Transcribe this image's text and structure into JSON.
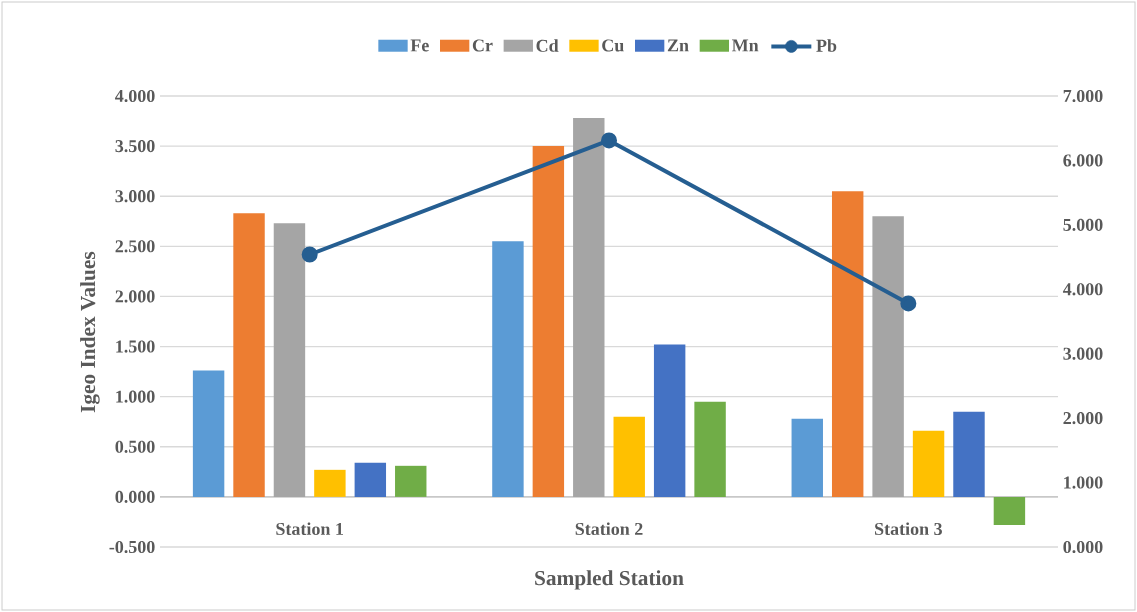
{
  "chart_data": {
    "type": "bar",
    "xlabel": "Sampled Station",
    "ylabel": "Igeo Index Values",
    "categories": [
      "Station 1",
      "Station 2",
      "Station 3"
    ],
    "series": [
      {
        "name": "Fe",
        "color": "#5b9bd5",
        "values": [
          1.26,
          2.55,
          0.78
        ]
      },
      {
        "name": "Cr",
        "color": "#ed7d31",
        "values": [
          2.83,
          3.5,
          3.05
        ]
      },
      {
        "name": "Cd",
        "color": "#a5a5a5",
        "values": [
          2.73,
          3.78,
          2.8
        ]
      },
      {
        "name": "Cu",
        "color": "#ffc000",
        "values": [
          0.27,
          0.8,
          0.66
        ]
      },
      {
        "name": "Zn",
        "color": "#4472c4",
        "values": [
          0.34,
          1.52,
          0.85
        ]
      },
      {
        "name": "Mn",
        "color": "#70ad47",
        "values": [
          0.31,
          0.95,
          -0.28
        ]
      },
      {
        "name": "Pb",
        "color": "#255e91",
        "type": "line",
        "axis": "y2",
        "marker": "circle",
        "values": [
          4.54,
          6.31,
          3.78
        ]
      }
    ],
    "ylim": [
      -0.5,
      4.0
    ],
    "yticks": [
      {
        "value": -0.5,
        "label": "-0.500"
      },
      {
        "value": 0,
        "label": "0.000"
      },
      {
        "value": 0.5,
        "label": "0.500"
      },
      {
        "value": 1,
        "label": "1.000"
      },
      {
        "value": 1.5,
        "label": "1.500"
      },
      {
        "value": 2,
        "label": "2.000"
      },
      {
        "value": 2.5,
        "label": "2.500"
      },
      {
        "value": 3,
        "label": "3.000"
      },
      {
        "value": 3.5,
        "label": "3.500"
      },
      {
        "value": 4,
        "label": "4.000"
      }
    ],
    "y2lim": [
      0,
      7
    ],
    "y2ticks": [
      {
        "value": 0,
        "label": "0.000"
      },
      {
        "value": 1,
        "label": "1.000"
      },
      {
        "value": 2,
        "label": "2.000"
      },
      {
        "value": 3,
        "label": "3.000"
      },
      {
        "value": 4,
        "label": "4.000"
      },
      {
        "value": 5,
        "label": "5.000"
      },
      {
        "value": 6,
        "label": "6.000"
      },
      {
        "value": 7,
        "label": "7.000"
      }
    ],
    "grid": "y",
    "legend": "top"
  }
}
